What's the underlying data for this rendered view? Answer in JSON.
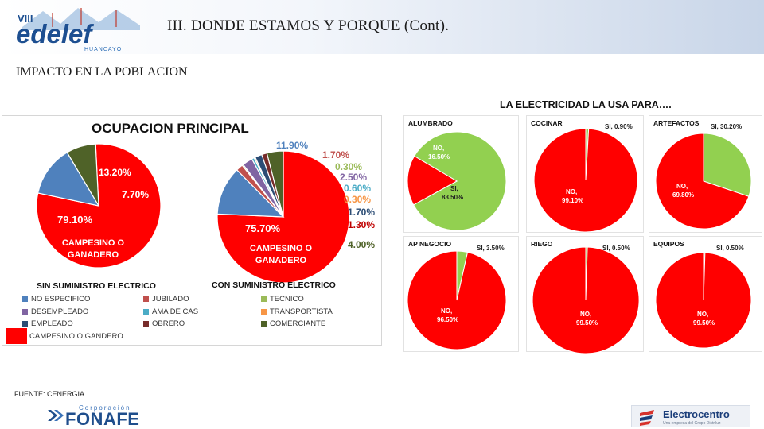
{
  "header": {
    "title": "III.  DONDE ESTAMOS Y PORQUE (Cont).",
    "logo": {
      "tag": "VIII",
      "name": "edelef",
      "sub": "HUANCAYO"
    }
  },
  "subtitle": "IMPACTO EN LA POBLACION",
  "chart_data": [
    {
      "type": "pie",
      "title": "OCUPACION PRINCIPAL",
      "subtitle": "SIN SUMINISTRO ELECTRICO",
      "slices": [
        {
          "label": "CAMPESINO O GANADERO",
          "value": 79.1,
          "text": "79.10%",
          "color": "#ff0000"
        },
        {
          "label": "NO ESPECIFICO",
          "value": 13.2,
          "text": "13.20%",
          "color": "#4f81bd"
        },
        {
          "label": "COMERCIANTE",
          "value": 7.7,
          "text": "7.70%",
          "color": "#4f6228"
        }
      ],
      "inner_label": "CAMPESINO O GANADERO"
    },
    {
      "type": "pie",
      "title": "OCUPACION PRINCIPAL",
      "subtitle": "CON SUMINISTRO ELECTRICO",
      "slices": [
        {
          "label": "CAMPESINO O GANADERO",
          "value": 75.7,
          "text": "75.70%",
          "color": "#ff0000"
        },
        {
          "label": "NO ESPECIFICO",
          "value": 11.9,
          "text": "11.90%",
          "color": "#4f81bd"
        },
        {
          "label": "JUBILADO",
          "value": 1.7,
          "text": "1.70%",
          "color": "#c0504d"
        },
        {
          "label": "TECNICO",
          "value": 0.3,
          "text": "0.30%",
          "color": "#9bbb59"
        },
        {
          "label": "DESEMPLEADO",
          "value": 2.5,
          "text": "2.50%",
          "color": "#8064a2"
        },
        {
          "label": "AMA DE CAS",
          "value": 0.6,
          "text": "0.60%",
          "color": "#4bacc6"
        },
        {
          "label": "TRANSPORTISTA",
          "value": 0.3,
          "text": "0.30%",
          "color": "#f79646"
        },
        {
          "label": "EMPLEADO",
          "value": 1.7,
          "text": "1.70%",
          "color": "#2c4d75"
        },
        {
          "label": "OBRERO",
          "value": 1.3,
          "text": "1.30%",
          "color": "#772c2a"
        },
        {
          "label": "COMERCIANTE",
          "value": 4.0,
          "text": "4.00%",
          "color": "#4f6228"
        }
      ],
      "inner_label": "CAMPESINO O GANADERO"
    }
  ],
  "legend": [
    {
      "label": "NO ESPECIFICO",
      "color": "#4f81bd"
    },
    {
      "label": "JUBILADO",
      "color": "#c0504d"
    },
    {
      "label": "TECNICO",
      "color": "#9bbb59"
    },
    {
      "label": "DESEMPLEADO",
      "color": "#8064a2"
    },
    {
      "label": "AMA DE CAS",
      "color": "#4bacc6"
    },
    {
      "label": "TRANSPORTISTA",
      "color": "#f79646"
    },
    {
      "label": "EMPLEADO",
      "color": "#2c4d75"
    },
    {
      "label": "OBRERO",
      "color": "#772c2a"
    },
    {
      "label": "COMERCIANTE",
      "color": "#4f6228"
    },
    {
      "label": "CAMPESINO O GANDERO",
      "color": "#ff0000"
    }
  ],
  "uses": {
    "title": "LA ELECTRICIDAD LA USA PARA….",
    "charts": [
      {
        "name": "ALUMBRADO",
        "no": 16.5,
        "si": 83.5,
        "no_text": "NO, 16.50%",
        "si_text": "SI, 83.50%",
        "si_color": "#92d050"
      },
      {
        "name": "COCINAR",
        "no": 99.1,
        "si": 0.9,
        "no_text": "NO, 99.10%",
        "si_text": "SI, 0.90%",
        "si_color": "#92d050"
      },
      {
        "name": "ARTEFACTOS",
        "no": 69.8,
        "si": 30.2,
        "no_text": "NO, 69.80%",
        "si_text": "SI, 30.20%",
        "si_color": "#92d050"
      },
      {
        "name": "AP NEGOCIO",
        "no": 96.5,
        "si": 3.5,
        "no_text": "NO, 96.50%",
        "si_text": "SI, 3.50%",
        "si_color": "#92d050"
      },
      {
        "name": "RIEGO",
        "no": 99.5,
        "si": 0.5,
        "no_text": "NO, 99.50%",
        "si_text": "SI, 0.50%",
        "si_color": "#92d050"
      },
      {
        "name": "EQUIPOS",
        "no": 99.5,
        "si": 0.5,
        "no_text": "NO, 99.50%",
        "si_text": "SI, 0.50%",
        "si_color": "#92d050"
      }
    ],
    "no_color": "#ff0000"
  },
  "footer": {
    "source": "FUENTE: CENERGIA",
    "fonafe_corp": "Corporación",
    "fonafe_name": "FONAFE",
    "electro_name": "Electrocentro",
    "electro_tag": "Una empresa del Grupo Distriluz"
  }
}
